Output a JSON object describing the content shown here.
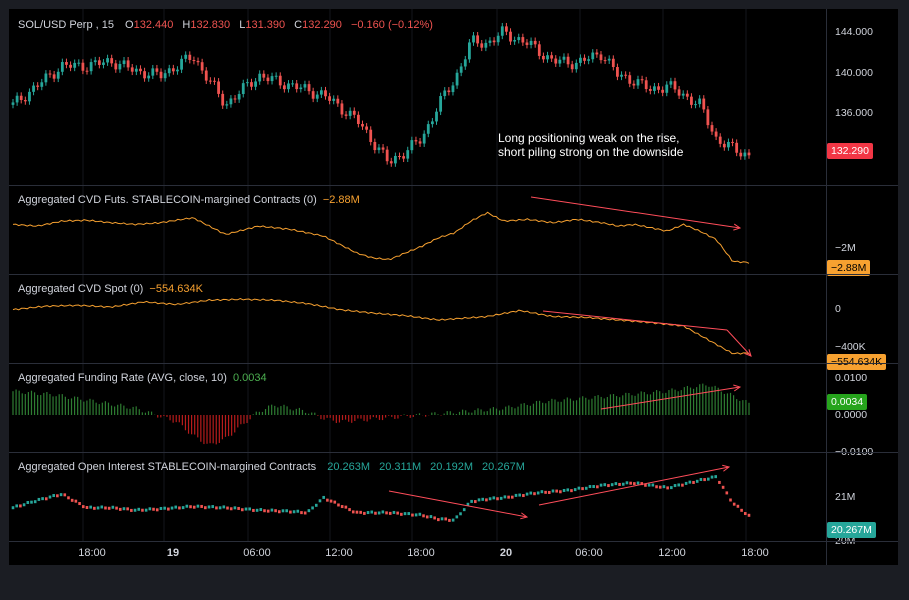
{
  "colors": {
    "up": "#26a69a",
    "down": "#ef5350",
    "orange": "#f7a130",
    "price_tag": "#f23645",
    "cvd_tag": "#f7a130",
    "funding_tag": "#26a41c",
    "oi_tag": "#26a69a",
    "trend": "#ff4d5a",
    "funding_pos": "#2e7d32",
    "funding_neg": "#b71c1c"
  },
  "price": {
    "symbol": "SOL/USD Perp",
    "interval": "15",
    "open_label": "O",
    "open": "132.440",
    "high_label": "H",
    "high": "132.830",
    "low_label": "L",
    "low": "131.390",
    "close_label": "C",
    "close": "132.290",
    "change": "−0.160 (−0.12%)",
    "axis_ticks": [
      "144.000",
      "140.000",
      "136.000"
    ],
    "last": "132.290",
    "annotation_line1": "Long positioning weak on the rise,",
    "annotation_line2": "short piling strong on the downside"
  },
  "cvd_futs": {
    "title": "Aggregated CVD Futs. STABLECOIN-margined Contracts (0)",
    "value": "−2.88M",
    "axis_ticks": [
      "−2M"
    ],
    "last": "−2.88M"
  },
  "cvd_spot": {
    "title": "Aggregated CVD Spot (0)",
    "value": "−554.634K",
    "axis_ticks": [
      "0",
      "−400K"
    ],
    "last": "−554.634K"
  },
  "funding": {
    "title": "Aggregated Funding Rate (AVG, close, 10)",
    "value": "0.0034",
    "axis_ticks": [
      "0.0100",
      "0.0000",
      "−0.0100"
    ],
    "last": "0.0034"
  },
  "oi": {
    "title": "Aggregated Open Interest STABLECOIN-margined Contracts",
    "values": [
      "20.263M",
      "20.311M",
      "20.192M",
      "20.267M"
    ],
    "axis_ticks": [
      "21M",
      "20M"
    ],
    "last": "20.267M"
  },
  "time_axis": [
    "18:00",
    "19",
    "06:00",
    "12:00",
    "18:00",
    "20",
    "06:00",
    "12:00",
    "18:00"
  ],
  "chart_data": [
    {
      "type": "line",
      "title": "SOL/USD Perp, 15",
      "ylim": [
        130.5,
        145.5
      ],
      "series": [
        {
          "name": "SOL/USD Perp",
          "x": [
            0,
            3,
            6,
            9,
            12,
            15,
            18,
            22,
            26,
            30,
            34,
            38,
            42,
            46,
            50,
            52,
            54,
            56,
            58,
            60,
            61,
            63,
            66,
            69,
            72,
            74,
            76,
            78,
            80,
            82,
            84,
            86,
            88,
            90
          ],
          "values": [
            137.5,
            139.5,
            141.5,
            141.5,
            142,
            141,
            140.5,
            142.5,
            137.5,
            140.5,
            139.5,
            138.5,
            136,
            131.5,
            134,
            137.5,
            140,
            144,
            143.8,
            145,
            144.5,
            143.8,
            142,
            141.8,
            142.8,
            140.5,
            140,
            139,
            139.5,
            138.5,
            137.5,
            134,
            133,
            132.29
          ]
        }
      ]
    },
    {
      "type": "line",
      "title": "Aggregated CVD Futs. STABLECOIN-margined Contracts (0)",
      "ylim": [
        -3.2,
        0.5
      ],
      "series": [
        {
          "x": [
            0,
            3,
            6,
            9,
            12,
            15,
            18,
            22,
            26,
            30,
            34,
            38,
            42,
            44,
            46,
            48,
            50,
            52,
            54,
            56,
            58,
            60,
            63,
            66,
            69,
            72,
            74,
            76,
            78,
            80,
            82,
            84,
            86,
            88,
            90
          ],
          "values": [
            -0.6,
            -0.7,
            -0.4,
            -0.35,
            -0.5,
            -0.6,
            -0.5,
            -0.2,
            -1.2,
            -0.7,
            -0.9,
            -1.3,
            -2.3,
            -2.6,
            -2.7,
            -2.3,
            -1.9,
            -1.4,
            -1.1,
            -0.4,
            0.1,
            -0.4,
            -0.3,
            -0.5,
            -0.3,
            -0.5,
            -0.7,
            -0.6,
            -0.8,
            -1.0,
            -0.6,
            -1.0,
            -1.5,
            -2.8,
            -2.88
          ]
        }
      ]
    },
    {
      "type": "line",
      "title": "Aggregated CVD Spot (0)",
      "ylim": [
        -600,
        120
      ],
      "series": [
        {
          "x": [
            0,
            4,
            8,
            12,
            16,
            20,
            24,
            28,
            32,
            36,
            40,
            44,
            48,
            52,
            55,
            58,
            62,
            66,
            70,
            74,
            78,
            82,
            85,
            88,
            90
          ],
          "values": [
            -50,
            -10,
            0,
            -20,
            40,
            10,
            60,
            70,
            60,
            20,
            -50,
            -90,
            -120,
            -170,
            -150,
            -130,
            -60,
            -130,
            -140,
            -170,
            -200,
            -240,
            -400,
            -560,
            -554.634
          ]
        }
      ]
    },
    {
      "type": "bar",
      "title": "Aggregated Funding Rate (AVG, close, 10)",
      "ylim": [
        -0.012,
        0.012
      ],
      "series": [
        {
          "x": [
            0,
            5,
            10,
            15,
            20,
            22,
            24,
            26,
            28,
            30,
            32,
            34,
            36,
            38,
            40,
            45,
            50,
            55,
            60,
            65,
            70,
            75,
            80,
            85,
            90
          ],
          "values": [
            0.007,
            0.006,
            0.004,
            0.002,
            -0.002,
            -0.006,
            -0.009,
            -0.007,
            -0.003,
            0.001,
            0.003,
            0.002,
            0.001,
            -0.001,
            -0.002,
            -0.001,
            0.0,
            0.001,
            0.002,
            0.004,
            0.005,
            0.006,
            0.007,
            0.009,
            0.0034
          ]
        }
      ]
    },
    {
      "type": "line",
      "title": "Aggregated Open Interest STABLECOIN-margined Contracts",
      "ylim": [
        19.5,
        22.0
      ],
      "series": [
        {
          "x": [
            0,
            3,
            6,
            9,
            12,
            15,
            18,
            22,
            26,
            30,
            34,
            36,
            38,
            42,
            46,
            50,
            52,
            54,
            56,
            58,
            60,
            64,
            68,
            72,
            76,
            80,
            84,
            86,
            88,
            90
          ],
          "values": [
            20.6,
            20.9,
            21.15,
            20.6,
            20.6,
            20.5,
            20.55,
            20.65,
            20.6,
            20.5,
            20.45,
            20.4,
            21.0,
            20.4,
            20.4,
            20.3,
            20.15,
            20.1,
            20.85,
            20.95,
            21.0,
            21.2,
            21.3,
            21.5,
            21.6,
            21.4,
            21.7,
            21.85,
            20.8,
            20.267
          ]
        }
      ]
    }
  ]
}
